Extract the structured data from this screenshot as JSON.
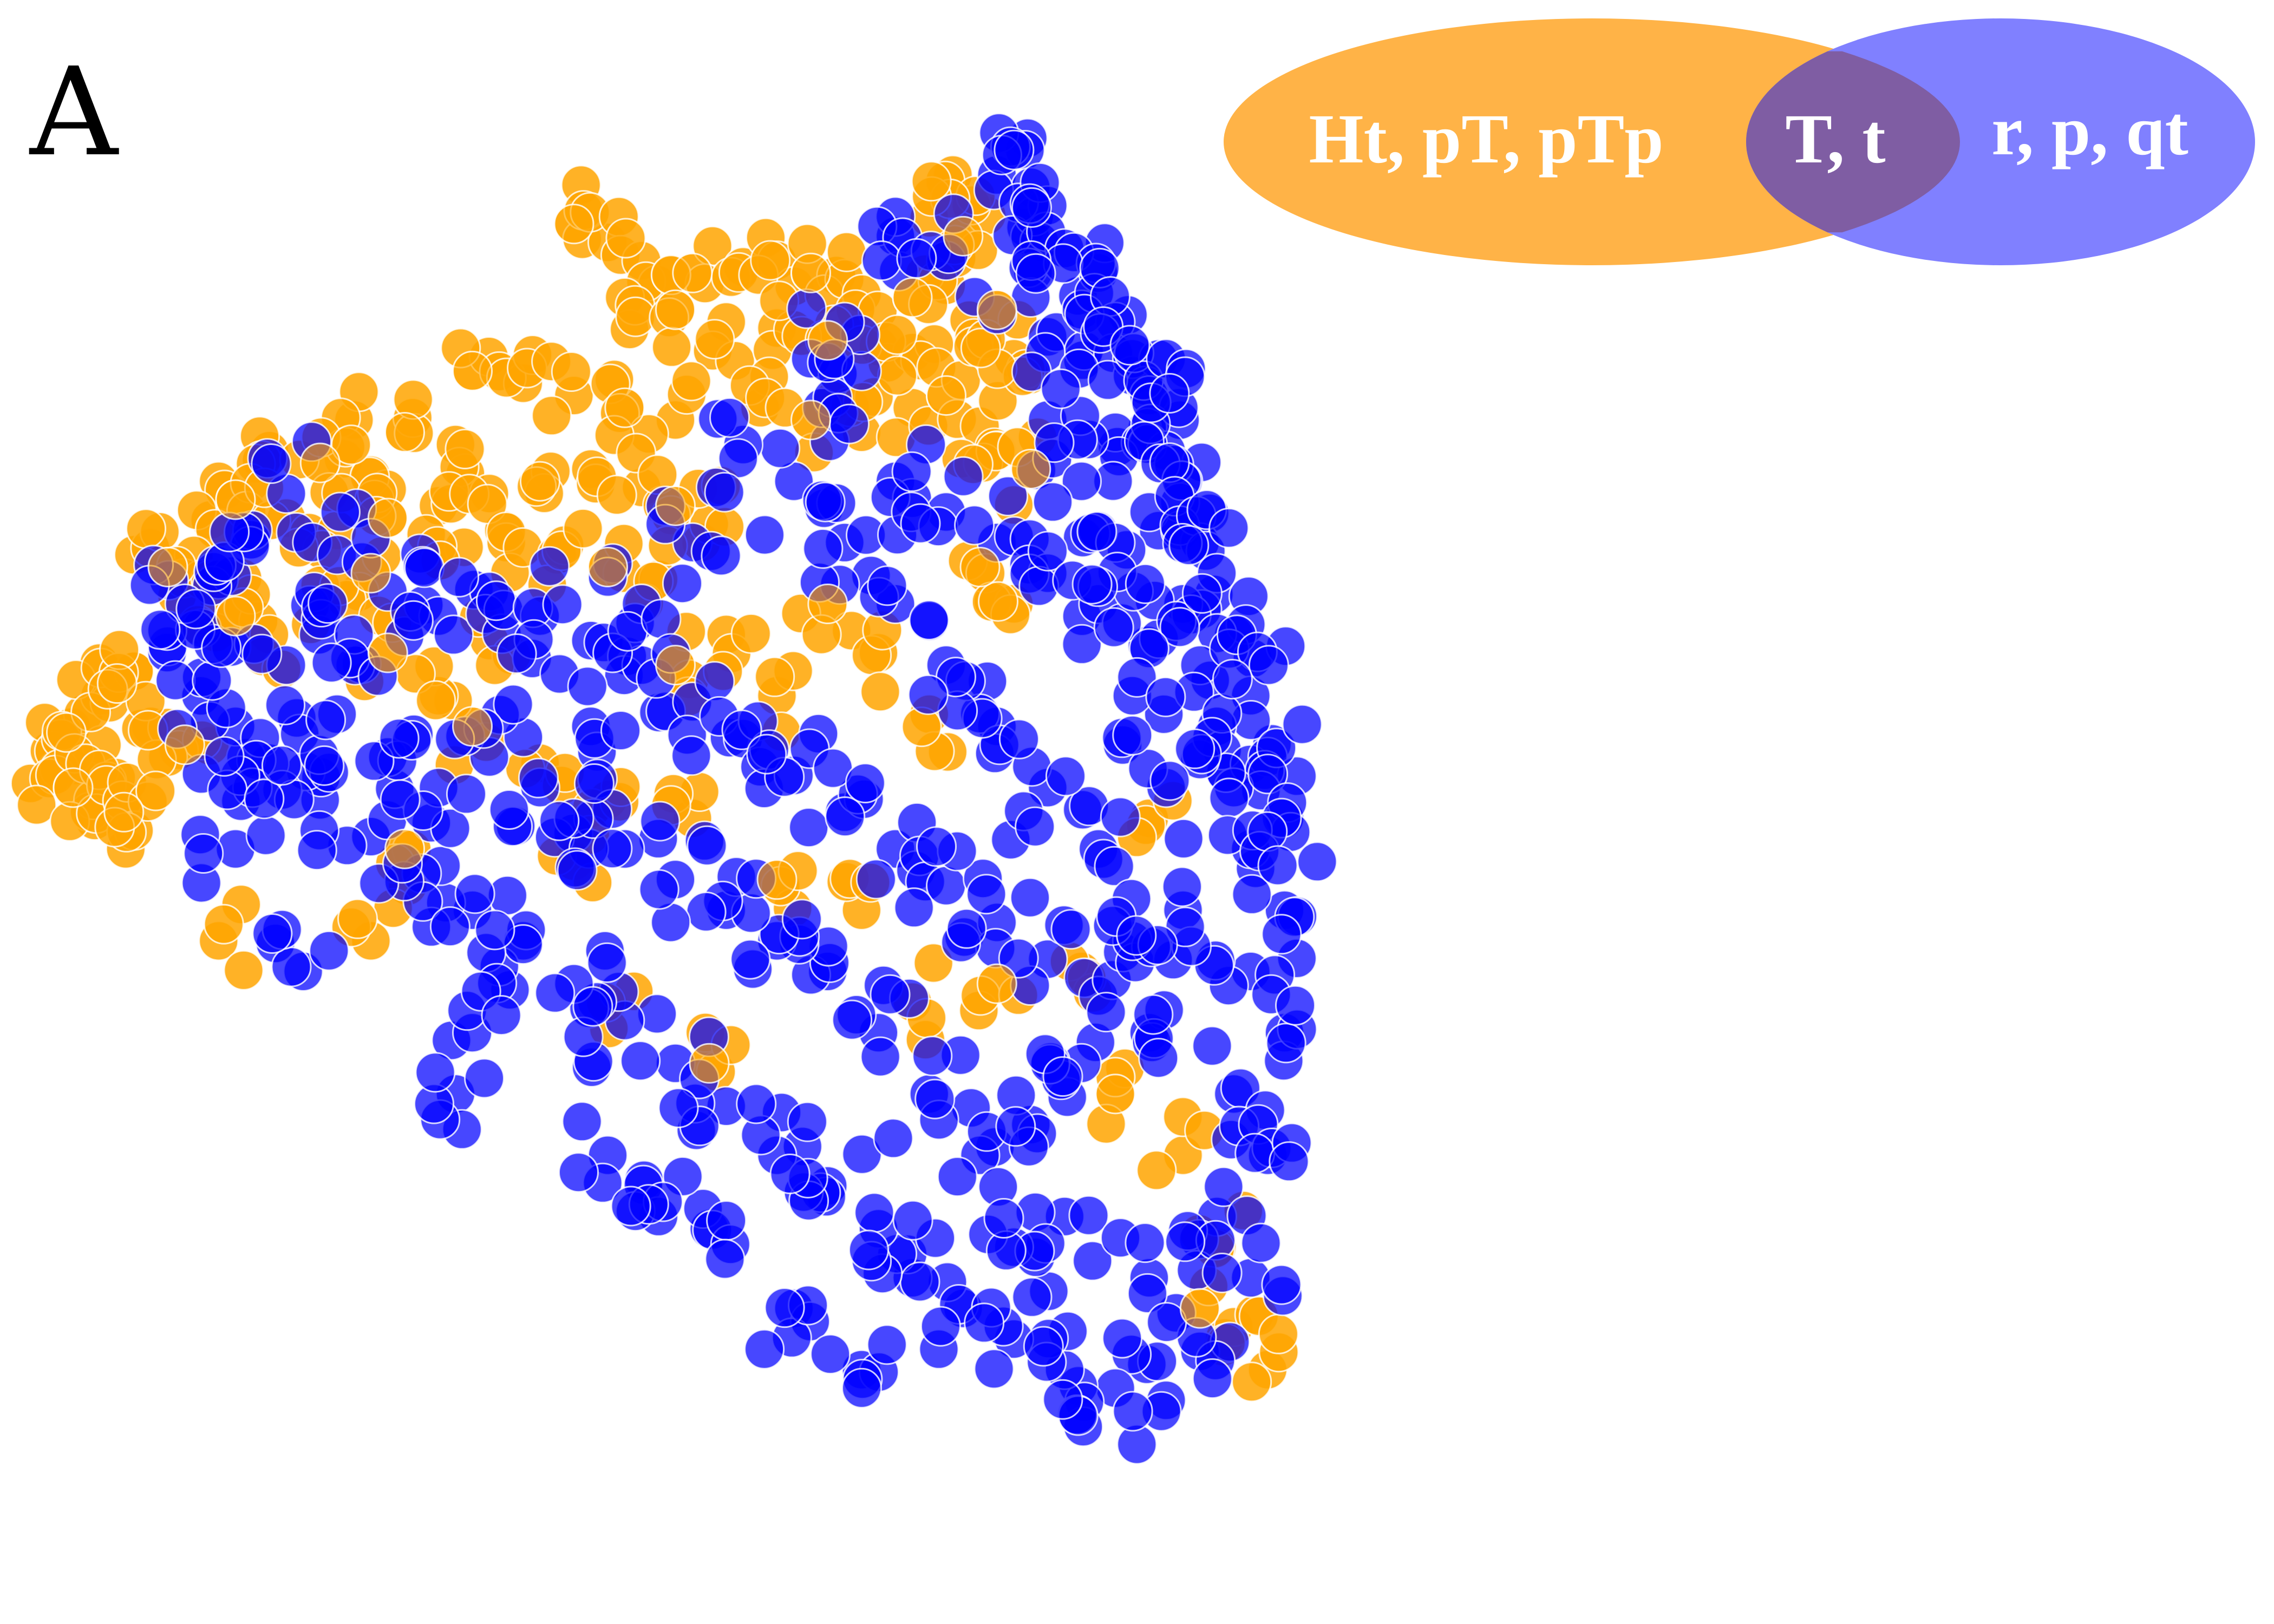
{
  "panel_label": "A",
  "colors": {
    "orange": "#ffa500",
    "blue": "#0000ff",
    "venn_orange": "#ffb347",
    "venn_blue": "#8080ff",
    "venn_overlap": "#7f5da3",
    "marker_edge": "#ffffff"
  },
  "chart_data": {
    "type": "scatter",
    "title": "",
    "xlabel": "",
    "ylabel": "",
    "grid": false,
    "axes_visible": false,
    "legend": {
      "type": "venn",
      "placement": "top-right",
      "left_label": "Ht, pT, pTp",
      "overlap_label": "T, t",
      "right_label": "r, p, qt"
    },
    "series": [
      {
        "color": "orange",
        "anchor_points": [
          [
            1.6,
            0.92
          ],
          [
            1.7,
            0.89
          ],
          [
            1.8,
            0.86
          ],
          [
            1.95,
            0.84
          ],
          [
            2.1,
            0.85
          ],
          [
            2.2,
            0.86
          ],
          [
            2.3,
            0.84
          ],
          [
            2.4,
            0.83
          ],
          [
            1.75,
            0.8
          ],
          [
            1.9,
            0.78
          ],
          [
            2.05,
            0.76
          ],
          [
            2.2,
            0.75
          ],
          [
            2.35,
            0.73
          ],
          [
            2.5,
            0.72
          ],
          [
            2.6,
            0.71
          ],
          [
            1.3,
            0.68
          ],
          [
            1.45,
            0.66
          ],
          [
            1.6,
            0.64
          ],
          [
            1.75,
            0.62
          ],
          [
            1.9,
            0.6
          ],
          [
            0.95,
            0.6
          ],
          [
            1.1,
            0.58
          ],
          [
            1.25,
            0.56
          ],
          [
            0.7,
            0.55
          ],
          [
            0.85,
            0.53
          ],
          [
            1.0,
            0.51
          ],
          [
            0.55,
            0.5
          ],
          [
            0.6,
            0.47
          ],
          [
            0.75,
            0.44
          ],
          [
            0.9,
            0.42
          ],
          [
            1.05,
            0.44
          ],
          [
            1.2,
            0.46
          ],
          [
            1.35,
            0.48
          ],
          [
            1.5,
            0.5
          ],
          [
            1.65,
            0.52
          ],
          [
            1.8,
            0.49
          ],
          [
            1.9,
            0.46
          ],
          [
            2.0,
            0.43
          ],
          [
            2.15,
            0.62
          ],
          [
            2.3,
            0.6
          ],
          [
            2.45,
            0.58
          ],
          [
            2.6,
            0.62
          ],
          [
            2.7,
            0.64
          ],
          [
            2.8,
            0.59
          ],
          [
            2.85,
            0.55
          ],
          [
            2.95,
            0.52
          ],
          [
            1.4,
            0.4
          ],
          [
            1.55,
            0.38
          ],
          [
            1.7,
            0.36
          ],
          [
            1.85,
            0.34
          ],
          [
            1.2,
            0.37
          ],
          [
            1.0,
            0.35
          ],
          [
            0.85,
            0.33
          ],
          [
            0.3,
            0.38
          ],
          [
            0.4,
            0.36
          ],
          [
            0.5,
            0.34
          ],
          [
            0.55,
            0.31
          ],
          [
            0.6,
            0.28
          ],
          [
            0.7,
            0.25
          ],
          [
            0.05,
            0.06
          ],
          [
            0.1,
            0.09
          ],
          [
            0.15,
            0.12
          ],
          [
            0.2,
            0.15
          ],
          [
            0.25,
            0.17
          ],
          [
            0.3,
            0.19
          ],
          [
            0.08,
            0.03
          ],
          [
            0.12,
            0.0
          ],
          [
            0.18,
            -0.02
          ],
          [
            0.22,
            0.01
          ],
          [
            0.27,
            -0.04
          ],
          [
            0.3,
            -0.07
          ],
          [
            0.35,
            0.1
          ],
          [
            0.45,
            0.07
          ],
          [
            0.55,
            -0.25
          ],
          [
            0.4,
            0.05
          ],
          [
            1.3,
            0.1
          ],
          [
            1.5,
            0.04
          ],
          [
            1.7,
            -0.02
          ],
          [
            1.9,
            0.2
          ],
          [
            2.05,
            0.25
          ],
          [
            2.2,
            0.15
          ],
          [
            2.35,
            0.3
          ],
          [
            2.5,
            0.22
          ],
          [
            2.65,
            0.12
          ],
          [
            1.05,
            0.22
          ],
          [
            1.2,
            0.15
          ],
          [
            1.35,
            0.24
          ],
          [
            1.1,
            -0.1
          ],
          [
            1.6,
            -0.12
          ],
          [
            1.95,
            -0.05
          ],
          [
            2.2,
            -0.15
          ],
          [
            2.45,
            -0.2
          ],
          [
            2.6,
            -0.35
          ],
          [
            2.85,
            -0.32
          ],
          [
            3.1,
            -0.3
          ],
          [
            3.3,
            -0.05
          ],
          [
            3.2,
            -0.5
          ],
          [
            3.4,
            -0.6
          ],
          [
            3.5,
            -0.75
          ],
          [
            3.45,
            -0.85
          ],
          [
            3.55,
            -0.88
          ],
          [
            3.65,
            -0.95
          ],
          [
            2.0,
            -0.45
          ],
          [
            1.7,
            -0.35
          ],
          [
            1.0,
            -0.25
          ],
          [
            2.8,
            0.36
          ],
          [
            2.9,
            0.3
          ],
          [
            2.7,
            0.82
          ],
          [
            2.75,
            0.9
          ],
          [
            2.72,
            1.0
          ],
          [
            2.65,
            0.93
          ],
          [
            2.85,
            0.78
          ],
          [
            2.9,
            0.7
          ],
          [
            2.78,
            0.72
          ],
          [
            2.6,
            0.8
          ]
        ]
      },
      {
        "color": "blue",
        "anchor_points": [
          [
            2.85,
            1.0
          ],
          [
            2.95,
            0.98
          ],
          [
            3.0,
            0.95
          ],
          [
            2.55,
            0.9
          ],
          [
            2.7,
            0.86
          ],
          [
            3.05,
            0.88
          ],
          [
            3.15,
            0.84
          ],
          [
            2.95,
            0.8
          ],
          [
            3.1,
            0.78
          ],
          [
            3.2,
            0.76
          ],
          [
            3.25,
            0.7
          ],
          [
            3.3,
            0.64
          ],
          [
            3.2,
            0.58
          ],
          [
            3.35,
            0.55
          ],
          [
            3.4,
            0.5
          ],
          [
            3.3,
            0.45
          ],
          [
            3.45,
            0.4
          ],
          [
            3.5,
            0.35
          ],
          [
            3.4,
            0.3
          ],
          [
            3.55,
            0.25
          ],
          [
            3.45,
            0.2
          ],
          [
            3.6,
            0.15
          ],
          [
            3.5,
            0.1
          ],
          [
            3.65,
            0.05
          ],
          [
            3.55,
            0.0
          ],
          [
            3.7,
            -0.05
          ],
          [
            3.6,
            -0.1
          ],
          [
            3.7,
            -0.2
          ],
          [
            3.6,
            -0.3
          ],
          [
            3.7,
            -0.4
          ],
          [
            3.55,
            -0.5
          ],
          [
            3.65,
            -0.6
          ],
          [
            3.5,
            -0.7
          ],
          [
            3.6,
            -0.8
          ],
          [
            3.45,
            -0.92
          ],
          [
            3.35,
            -1.0
          ],
          [
            3.2,
            -0.98
          ],
          [
            3.05,
            -0.95
          ],
          [
            2.9,
            -0.9
          ],
          [
            2.75,
            -0.85
          ],
          [
            2.6,
            -0.8
          ],
          [
            2.5,
            -0.72
          ],
          [
            2.35,
            -0.65
          ],
          [
            2.2,
            -0.6
          ],
          [
            2.05,
            -0.52
          ],
          [
            1.9,
            -0.45
          ],
          [
            1.75,
            -0.38
          ],
          [
            1.6,
            -0.32
          ],
          [
            1.45,
            -0.25
          ],
          [
            1.3,
            -0.2
          ],
          [
            1.15,
            -0.14
          ],
          [
            1.0,
            -0.08
          ],
          [
            0.85,
            -0.02
          ],
          [
            0.7,
            0.04
          ],
          [
            0.6,
            0.1
          ],
          [
            0.5,
            0.18
          ],
          [
            0.5,
            0.26
          ],
          [
            0.55,
            0.34
          ],
          [
            0.65,
            0.42
          ],
          [
            0.75,
            0.48
          ],
          [
            0.9,
            0.38
          ],
          [
            1.05,
            0.32
          ],
          [
            1.2,
            0.28
          ],
          [
            1.35,
            0.32
          ],
          [
            1.5,
            0.28
          ],
          [
            1.65,
            0.24
          ],
          [
            1.8,
            0.2
          ],
          [
            1.95,
            0.14
          ],
          [
            2.1,
            0.08
          ],
          [
            2.25,
            0.02
          ],
          [
            2.4,
            -0.04
          ],
          [
            2.55,
            -0.1
          ],
          [
            2.7,
            -0.16
          ],
          [
            2.85,
            -0.22
          ],
          [
            3.0,
            -0.28
          ],
          [
            3.15,
            -0.34
          ],
          [
            3.3,
            -0.4
          ],
          [
            3.15,
            -0.1
          ],
          [
            3.0,
            0.0
          ],
          [
            2.85,
            0.1
          ],
          [
            2.7,
            0.2
          ],
          [
            2.55,
            0.3
          ],
          [
            2.4,
            0.4
          ],
          [
            2.25,
            0.5
          ],
          [
            2.1,
            0.56
          ],
          [
            1.95,
            0.4
          ],
          [
            1.8,
            0.3
          ],
          [
            1.65,
            0.1
          ],
          [
            1.5,
            0.0
          ],
          [
            1.35,
            0.05
          ],
          [
            1.2,
            0.0
          ],
          [
            1.05,
            0.05
          ],
          [
            0.9,
            0.12
          ],
          [
            0.75,
            0.2
          ],
          [
            0.95,
            0.25
          ],
          [
            2.3,
            0.7
          ],
          [
            2.45,
            0.68
          ],
          [
            2.55,
            0.5
          ],
          [
            2.7,
            0.45
          ],
          [
            2.85,
            0.4
          ],
          [
            3.0,
            0.35
          ],
          [
            3.15,
            0.3
          ],
          [
            3.0,
            0.6
          ],
          [
            3.1,
            0.5
          ],
          [
            3.25,
            0.15
          ],
          [
            3.35,
            0.0
          ],
          [
            3.4,
            -0.2
          ],
          [
            3.25,
            -0.25
          ],
          [
            3.1,
            -0.45
          ],
          [
            2.95,
            -0.55
          ],
          [
            2.8,
            -0.6
          ],
          [
            2.65,
            -0.5
          ],
          [
            2.5,
            -0.4
          ],
          [
            2.35,
            -0.3
          ],
          [
            2.2,
            -0.25
          ],
          [
            2.05,
            -0.2
          ],
          [
            1.9,
            -0.15
          ],
          [
            1.75,
            -0.1
          ],
          [
            1.6,
            -0.05
          ],
          [
            2.25,
            -0.85
          ],
          [
            2.45,
            -0.95
          ],
          [
            1.7,
            -0.6
          ],
          [
            1.25,
            -0.5
          ],
          [
            0.6,
            -0.1
          ],
          [
            0.8,
            -0.3
          ],
          [
            0.45,
            0.3
          ],
          [
            0.65,
            0.0
          ],
          [
            1.3,
            -0.4
          ],
          [
            2.0,
            -0.72
          ],
          [
            1.85,
            -0.7
          ],
          [
            3.35,
            0.7
          ],
          [
            3.2,
            0.4
          ],
          [
            3.05,
            -0.7
          ],
          [
            2.9,
            -0.75
          ],
          [
            3.3,
            -0.8
          ]
        ]
      }
    ]
  }
}
